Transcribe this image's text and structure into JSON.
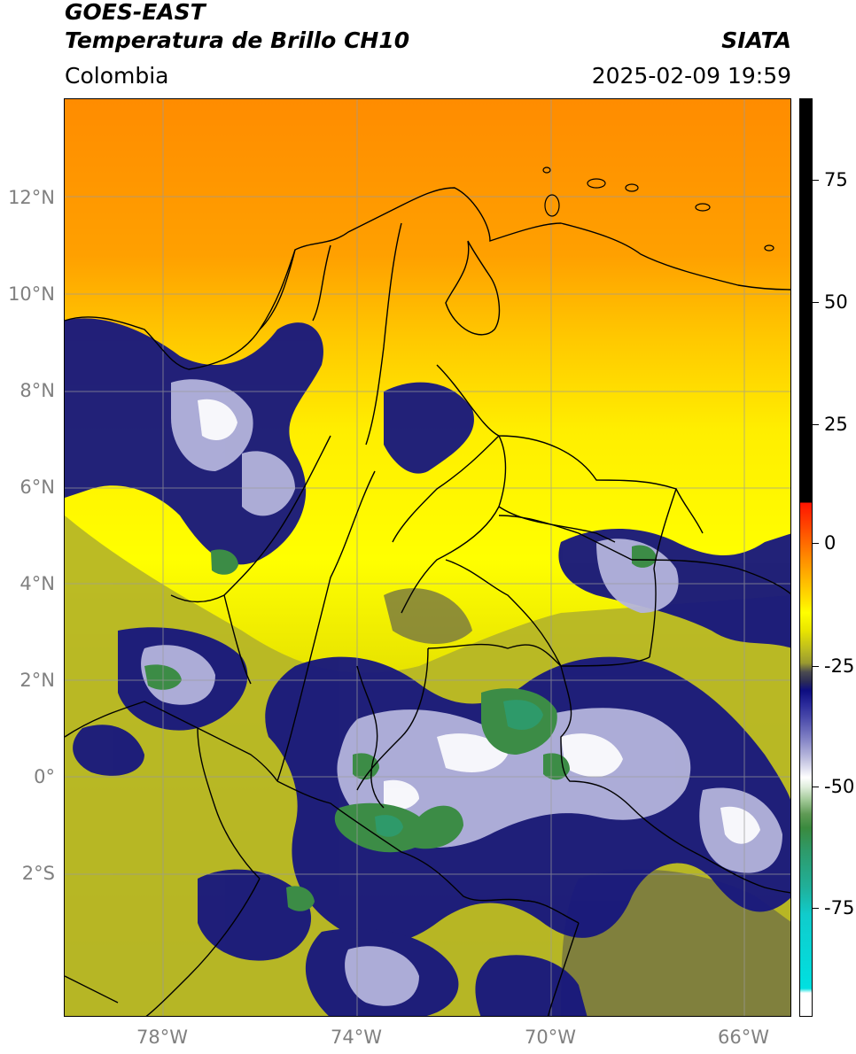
{
  "header": {
    "satellite": "GOES-EAST",
    "product": "Temperatura de Brillo CH10",
    "organization": "SIATA",
    "region": "Colombia",
    "datetime": "2025-02-09 19:59"
  },
  "map": {
    "lat_labels": [
      "12°N",
      "10°N",
      "8°N",
      "6°N",
      "4°N",
      "2°N",
      "0°",
      "2°S"
    ],
    "lon_labels": [
      "78°W",
      "74°W",
      "70°W",
      "66°W"
    ],
    "colors": {
      "warm_far": "#ff8c00",
      "warm": "#ffb000",
      "yellow": "#ffff00",
      "olive": "#b4b428",
      "dark_olive": "#6e6e46",
      "navy": "#16167e",
      "lavender": "#b4b4dc",
      "white": "#ffffff",
      "green": "#3c8c46",
      "teal_green": "#2e9a6a",
      "border_line": "#000000",
      "grid": "#9a9a9a"
    }
  },
  "colorbar": {
    "labels": [
      "75",
      "50",
      "25",
      "0",
      "-25",
      "-50",
      "-75"
    ]
  }
}
